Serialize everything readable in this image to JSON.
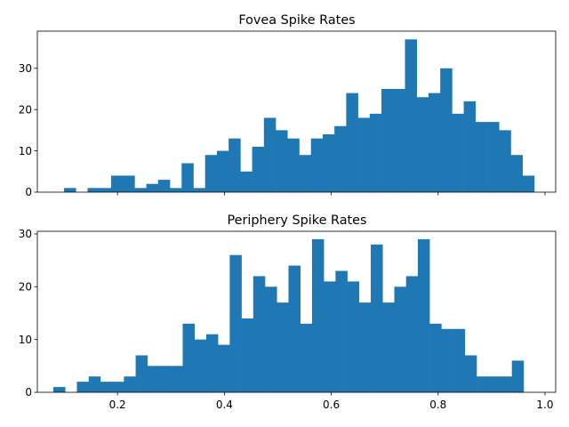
{
  "chart_data": [
    {
      "type": "bar",
      "title": "Fovea Spike Rates",
      "bar_color": "#1f77b4",
      "xlim": [
        0.05,
        1.02
      ],
      "ylim": [
        0,
        39
      ],
      "x_ticks": [
        "0.2",
        "0.4",
        "0.6",
        "0.8",
        "1.0"
      ],
      "x_ticks_labeled": false,
      "y_ticks": [
        "0",
        "10",
        "20",
        "30"
      ],
      "bins": {
        "start": 0.1,
        "width": 0.022,
        "values": [
          1,
          0,
          1,
          1,
          4,
          4,
          1,
          2,
          3,
          1,
          7,
          1,
          9,
          10,
          13,
          5,
          11,
          18,
          15,
          13,
          9,
          13,
          14,
          16,
          24,
          18,
          19,
          25,
          25,
          37,
          23,
          24,
          30,
          19,
          22,
          17,
          17,
          15,
          9,
          4
        ]
      }
    },
    {
      "type": "bar",
      "title": "Periphery Spike Rates",
      "bar_color": "#1f77b4",
      "xlim": [
        0.05,
        1.02
      ],
      "ylim": [
        0,
        30.5
      ],
      "x_ticks": [
        "0.2",
        "0.4",
        "0.6",
        "0.8",
        "1.0"
      ],
      "x_ticks_labeled": true,
      "y_ticks": [
        "0",
        "10",
        "20",
        "30"
      ],
      "bins": {
        "start": 0.08,
        "width": 0.022,
        "values": [
          1,
          0,
          2,
          3,
          2,
          2,
          3,
          7,
          5,
          5,
          5,
          13,
          10,
          11,
          9,
          26,
          14,
          22,
          20,
          17,
          24,
          13,
          29,
          21,
          23,
          21,
          17,
          28,
          17,
          20,
          22,
          29,
          13,
          12,
          12,
          7,
          3,
          3,
          3,
          6
        ]
      }
    }
  ]
}
